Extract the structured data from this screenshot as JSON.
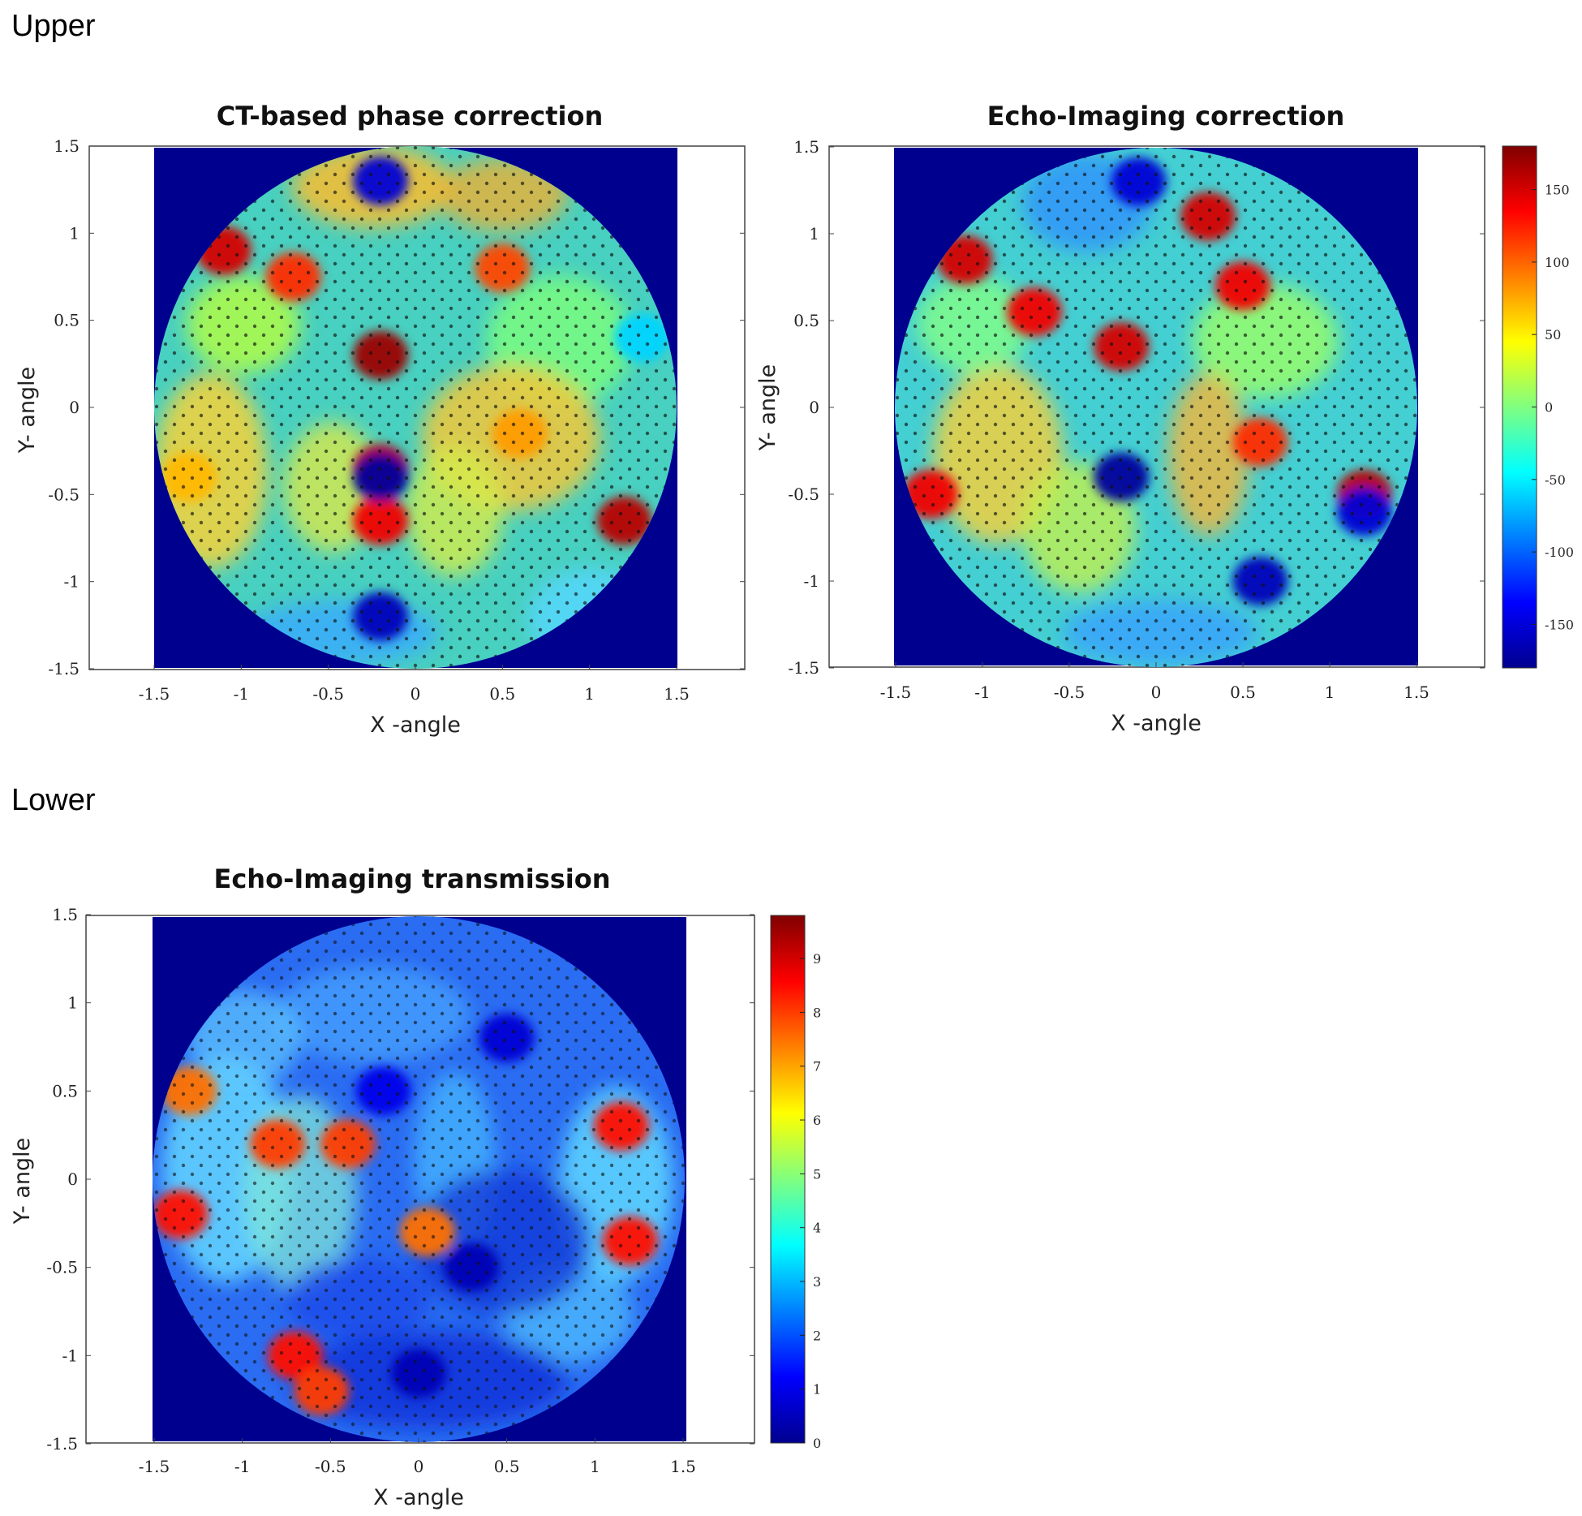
{
  "sections": {
    "upper": "Upper",
    "lower": "Lower"
  },
  "chart_data": [
    {
      "type": "heatmap",
      "title": "CT-based phase correction",
      "xlabel": "X -angle",
      "ylabel": "Y- angle",
      "xlim": [
        -1.5,
        1.5
      ],
      "ylim": [
        -1.5,
        1.5
      ],
      "xticks": [
        "-1.5",
        "-1",
        "-0.5",
        "0",
        "0.5",
        "1",
        "1.5"
      ],
      "yticks": [
        "-1.5",
        "-1",
        "-0.5",
        "0",
        "0.5",
        "1",
        "1.5"
      ],
      "clim": [
        -180,
        180
      ],
      "colormap": "jet",
      "background": "#00008f",
      "hot_regions": [
        {
          "x": -0.2,
          "y": 0.3,
          "value": 170
        },
        {
          "x": -1.1,
          "y": 0.9,
          "value": 150
        },
        {
          "x": -0.7,
          "y": 0.75,
          "value": 120
        },
        {
          "x": 0.5,
          "y": 0.8,
          "value": 110
        },
        {
          "x": -0.2,
          "y": -0.35,
          "value": 160
        },
        {
          "x": -0.2,
          "y": -0.65,
          "value": 140
        },
        {
          "x": 1.2,
          "y": -0.65,
          "value": 160
        },
        {
          "x": 0.6,
          "y": -0.15,
          "value": 80
        },
        {
          "x": -1.3,
          "y": -0.4,
          "value": 70
        }
      ],
      "cold_regions": [
        {
          "x": -0.2,
          "y": 1.3,
          "value": -150
        },
        {
          "x": -0.2,
          "y": -0.4,
          "value": -170
        },
        {
          "x": -0.2,
          "y": -1.2,
          "value": -160
        },
        {
          "x": 1.3,
          "y": 0.4,
          "value": -60
        }
      ]
    },
    {
      "type": "heatmap",
      "title": "Echo-Imaging correction",
      "xlabel": "X -angle",
      "ylabel": "Y- angle",
      "xlim": [
        -1.5,
        1.5
      ],
      "ylim": [
        -1.5,
        1.5
      ],
      "xticks": [
        "-1.5",
        "-1",
        "-0.5",
        "0",
        "0.5",
        "1",
        "1.5"
      ],
      "yticks": [
        "-1.5",
        "-1",
        "-0.5",
        "0",
        "0.5",
        "1",
        "1.5"
      ],
      "clim": [
        -180,
        180
      ],
      "colorbar_ticks": [
        "150",
        "100",
        "50",
        "0",
        "-50",
        "-100",
        "-150"
      ],
      "colormap": "jet",
      "background": "#00008f",
      "hot_regions": [
        {
          "x": -1.1,
          "y": 0.85,
          "value": 150
        },
        {
          "x": -0.7,
          "y": 0.55,
          "value": 140
        },
        {
          "x": 0.3,
          "y": 1.1,
          "value": 150
        },
        {
          "x": 0.5,
          "y": 0.7,
          "value": 140
        },
        {
          "x": 1.2,
          "y": -0.5,
          "value": 160
        },
        {
          "x": -1.3,
          "y": -0.5,
          "value": 140
        },
        {
          "x": 0.6,
          "y": -0.2,
          "value": 120
        },
        {
          "x": -0.2,
          "y": 0.35,
          "value": 150
        }
      ],
      "cold_regions": [
        {
          "x": -0.2,
          "y": -0.4,
          "value": -170
        },
        {
          "x": -0.1,
          "y": 1.3,
          "value": -150
        },
        {
          "x": 0.6,
          "y": -1.0,
          "value": -160
        },
        {
          "x": 1.2,
          "y": -0.6,
          "value": -150
        }
      ]
    },
    {
      "type": "heatmap",
      "title": "Echo-Imaging transmission",
      "xlabel": "X -angle",
      "ylabel": "Y- angle",
      "xlim": [
        -1.5,
        1.5
      ],
      "ylim": [
        -1.5,
        1.5
      ],
      "xticks": [
        "-1.5",
        "-1",
        "-0.5",
        "0",
        "0.5",
        "1",
        "1.5"
      ],
      "yticks": [
        "-1.5",
        "-1",
        "-0.5",
        "0",
        "0.5",
        "1",
        "1.5"
      ],
      "clim": [
        0,
        9.8
      ],
      "colorbar_ticks": [
        "9",
        "8",
        "7",
        "6",
        "5",
        "4",
        "3",
        "2",
        "1",
        "0"
      ],
      "colormap": "jet",
      "background": "#00008f",
      "hot_regions": [
        {
          "x": -1.35,
          "y": -0.2,
          "value": 8.5
        },
        {
          "x": -1.3,
          "y": 0.5,
          "value": 7.5
        },
        {
          "x": -0.7,
          "y": -1.0,
          "value": 8.5
        },
        {
          "x": -0.55,
          "y": -1.2,
          "value": 8.0
        },
        {
          "x": -0.8,
          "y": 0.2,
          "value": 8.0
        },
        {
          "x": -0.4,
          "y": 0.2,
          "value": 8.0
        },
        {
          "x": 1.15,
          "y": 0.3,
          "value": 8.5
        },
        {
          "x": 1.2,
          "y": -0.35,
          "value": 8.5
        },
        {
          "x": 0.05,
          "y": -0.3,
          "value": 7.5
        }
      ],
      "cold_regions": [
        {
          "x": 0.3,
          "y": -0.5,
          "value": 0.5
        },
        {
          "x": 0.0,
          "y": -1.1,
          "value": 0.5
        },
        {
          "x": 0.5,
          "y": 0.8,
          "value": 0.8
        },
        {
          "x": -0.2,
          "y": 0.5,
          "value": 1.0
        }
      ]
    }
  ]
}
